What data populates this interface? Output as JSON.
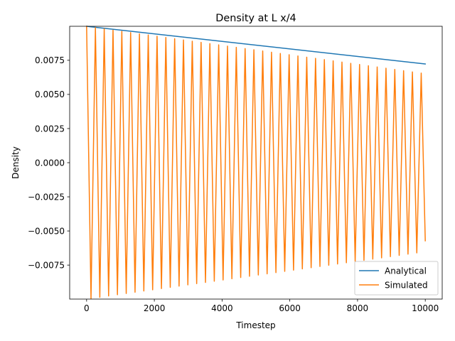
{
  "chart_data": {
    "type": "line",
    "title": "Density at L x/4",
    "xlabel": "Timestep",
    "ylabel": "Density",
    "xlim": [
      -500,
      10500
    ],
    "ylim": [
      -0.00999,
      0.00999
    ],
    "xticks": [
      0,
      2000,
      4000,
      6000,
      8000,
      10000
    ],
    "xtick_labels": [
      "0",
      "2000",
      "4000",
      "6000",
      "8000",
      "10000"
    ],
    "yticks": [
      -0.0075,
      -0.005,
      -0.0025,
      0.0,
      0.0025,
      0.005,
      0.0075
    ],
    "ytick_labels": [
      "−0.0075",
      "−0.0050",
      "−0.0025",
      "0.0000",
      "0.0025",
      "0.0050",
      "0.0075"
    ],
    "grid": false,
    "legend_position": "lower-right",
    "series": [
      {
        "name": "Analytical",
        "color": "#1f77b4",
        "x": [
          0,
          10000
        ],
        "y": [
          0.00999,
          0.00723
        ]
      },
      {
        "name": "Simulated",
        "color": "#ff7f0e",
        "x": [
          0,
          130,
          260,
          390,
          520,
          650,
          780,
          910,
          1040,
          1170,
          1300,
          1430,
          1560,
          1690,
          1820,
          1950,
          2080,
          2210,
          2340,
          2470,
          2600,
          2730,
          2860,
          2990,
          3120,
          3250,
          3380,
          3510,
          3640,
          3770,
          3900,
          4030,
          4160,
          4290,
          4420,
          4550,
          4680,
          4810,
          4940,
          5070,
          5200,
          5330,
          5460,
          5590,
          5720,
          5850,
          5980,
          6110,
          6240,
          6370,
          6500,
          6630,
          6760,
          6890,
          7020,
          7150,
          7280,
          7410,
          7540,
          7670,
          7800,
          7930,
          8060,
          8190,
          8320,
          8450,
          8580,
          8710,
          8840,
          8970,
          9100,
          9230,
          9360,
          9490,
          9620,
          9750,
          9880,
          10000
        ],
        "y": [
          0.00999,
          -0.00995,
          0.00989,
          -0.00986,
          0.0098,
          -0.00976,
          0.00971,
          -0.00967,
          0.00962,
          -0.00958,
          0.00953,
          -0.00949,
          0.00944,
          -0.0094,
          0.00935,
          -0.00931,
          0.00926,
          -0.00922,
          0.00917,
          -0.00913,
          0.00908,
          -0.00904,
          0.00899,
          -0.00895,
          0.0089,
          -0.00886,
          0.00881,
          -0.00877,
          0.00872,
          -0.00868,
          0.00863,
          -0.00859,
          0.00854,
          -0.0085,
          0.00845,
          -0.00841,
          0.00836,
          -0.00832,
          0.00827,
          -0.00823,
          0.00818,
          -0.00814,
          0.00809,
          -0.00805,
          0.008,
          -0.00796,
          0.00791,
          -0.00787,
          0.00782,
          -0.00778,
          0.00773,
          -0.00769,
          0.00764,
          -0.0076,
          0.00755,
          -0.00751,
          0.00746,
          -0.00742,
          0.00737,
          -0.00733,
          0.00728,
          -0.00724,
          0.00719,
          -0.00715,
          0.0071,
          -0.00706,
          0.00701,
          -0.00697,
          0.00692,
          -0.00688,
          0.00683,
          -0.00679,
          0.00674,
          -0.0067,
          0.00665,
          -0.00661,
          0.00656,
          -0.00572
        ]
      }
    ]
  }
}
